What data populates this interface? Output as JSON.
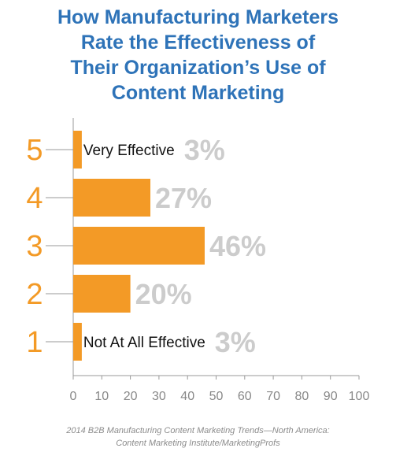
{
  "title_lines": [
    "How Manufacturing Marketers",
    "Rate the Effectiveness of",
    "Their Organization’s Use of",
    "Content Marketing"
  ],
  "source_lines": [
    "2014 B2B Manufacturing Content Marketing Trends—North America:",
    "Content Marketing Institute/MarketingProfs"
  ],
  "colors": {
    "title": "#2e73b8",
    "bar": "#f39a26",
    "rating": "#f39a26",
    "value_label": "#cccccc",
    "axis": "#999999",
    "tick_label": "#888888"
  },
  "chart_data": {
    "type": "bar",
    "orientation": "horizontal",
    "title": "How Manufacturing Marketers Rate the Effectiveness of Their Organization’s Use of Content Marketing",
    "categories": [
      "5",
      "4",
      "3",
      "2",
      "1"
    ],
    "category_descriptions": [
      "Very Effective",
      "",
      "",
      "",
      "Not At All Effective"
    ],
    "values": [
      3,
      27,
      46,
      20,
      3
    ],
    "value_labels": [
      "3%",
      "27%",
      "46%",
      "20%",
      "3%"
    ],
    "xlim": [
      0,
      100
    ],
    "x_ticks": [
      0,
      10,
      20,
      30,
      40,
      50,
      60,
      70,
      80,
      90,
      100
    ],
    "xlabel": "",
    "ylabel": "",
    "grid": false,
    "legend": "none"
  }
}
